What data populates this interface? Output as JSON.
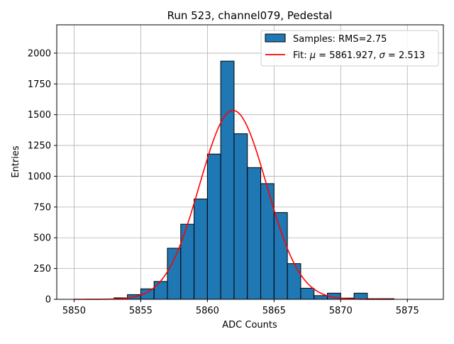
{
  "chart_data": {
    "type": "bar",
    "title": "Run 523, channel079, Pedestal",
    "xlabel": "ADC Counts",
    "ylabel": "Entries",
    "xlim": [
      5848.7,
      5877.7
    ],
    "ylim": [
      0,
      2230
    ],
    "x_ticks": [
      5850,
      5855,
      5860,
      5865,
      5870,
      5875
    ],
    "y_ticks": [
      0,
      250,
      500,
      750,
      1000,
      1250,
      1500,
      1750,
      2000
    ],
    "grid": true,
    "legend_position": "top-right",
    "histogram": {
      "name": "Samples: RMS=2.75",
      "color": "#1f77b4",
      "edge_color": "#000000",
      "bin_width": 1,
      "bins": [
        {
          "x0": 5853,
          "value": 12
        },
        {
          "x0": 5854,
          "value": 38
        },
        {
          "x0": 5855,
          "value": 85
        },
        {
          "x0": 5856,
          "value": 145
        },
        {
          "x0": 5857,
          "value": 415
        },
        {
          "x0": 5858,
          "value": 610
        },
        {
          "x0": 5859,
          "value": 815
        },
        {
          "x0": 5860,
          "value": 1180
        },
        {
          "x0": 5861,
          "value": 1935
        },
        {
          "x0": 5862,
          "value": 1345
        },
        {
          "x0": 5863,
          "value": 1070
        },
        {
          "x0": 5864,
          "value": 940
        },
        {
          "x0": 5865,
          "value": 705
        },
        {
          "x0": 5866,
          "value": 290
        },
        {
          "x0": 5867,
          "value": 90
        },
        {
          "x0": 5868,
          "value": 30
        },
        {
          "x0": 5869,
          "value": 50
        },
        {
          "x0": 5870,
          "value": 10
        },
        {
          "x0": 5871,
          "value": 50
        },
        {
          "x0": 5872,
          "value": 5
        },
        {
          "x0": 5873,
          "value": 5
        }
      ]
    },
    "fit": {
      "name_prefix": "Fit: ",
      "mu_symbol": "μ",
      "sigma_symbol": "σ",
      "mu": 5861.927,
      "sigma": 2.513,
      "amplitude": 1535,
      "x_range": [
        5850,
        5874
      ],
      "color": "#ff0000"
    }
  }
}
